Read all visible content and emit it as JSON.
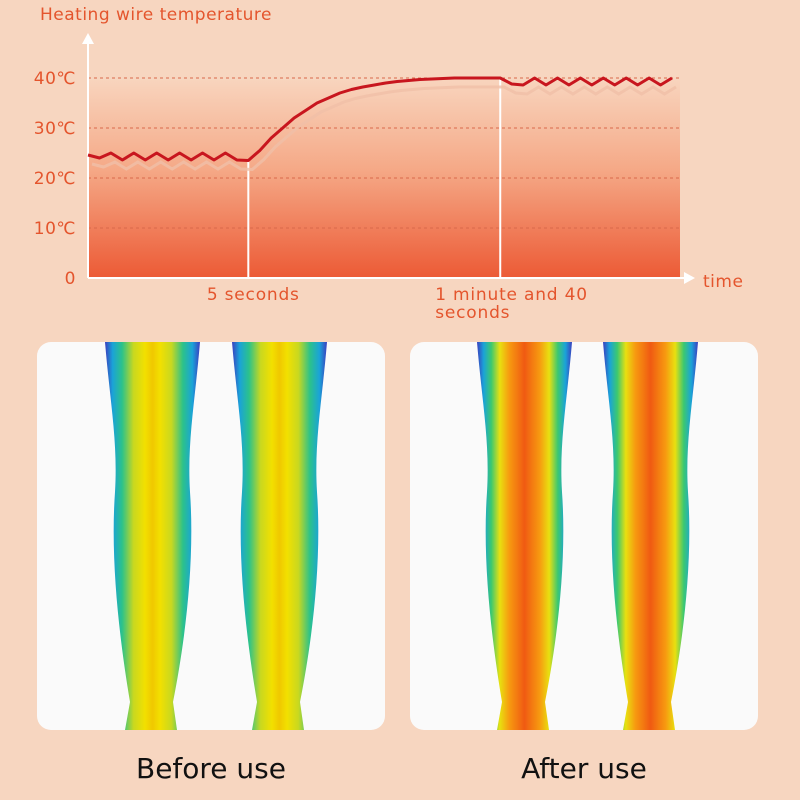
{
  "chart_data": {
    "type": "line",
    "title": "Heating wire temperature",
    "x_label": "time",
    "categories": [
      null,
      null,
      null,
      null,
      null,
      null,
      null,
      null,
      null,
      null,
      null,
      null,
      null,
      null,
      "5 seconds",
      null,
      null,
      null,
      null,
      null,
      null,
      null,
      null,
      null,
      null,
      null,
      null,
      null,
      null,
      null,
      null,
      null,
      null,
      null,
      null,
      null,
      "1 minute and 40 seconds",
      null,
      null,
      null,
      null,
      null,
      null,
      null,
      null,
      null,
      null,
      null,
      null,
      null,
      null,
      null
    ],
    "series": [
      {
        "name": "Heating wire temperature",
        "color": "#c8161e",
        "values": [
          24.6,
          24,
          25,
          23.6,
          25,
          23.6,
          25,
          23.6,
          25,
          23.6,
          25,
          23.6,
          25,
          23.6,
          23.5,
          25.5,
          28,
          30,
          32,
          33.5,
          35,
          36,
          37,
          37.7,
          38.2,
          38.6,
          39,
          39.3,
          39.5,
          39.7,
          39.8,
          39.9,
          40,
          40,
          40,
          40,
          40,
          38.8,
          38.6,
          40,
          38.6,
          40,
          38.6,
          40,
          38.6,
          40,
          38.6,
          40,
          38.6,
          40,
          38.6,
          40
        ]
      }
    ],
    "ylim": [
      0,
      49
    ],
    "yticks": [
      0,
      {
        "value": 10,
        "label": "10℃"
      },
      {
        "value": 20,
        "label": "20℃"
      },
      {
        "value": 30,
        "label": "30℃"
      },
      {
        "value": 40,
        "label": "40℃"
      }
    ],
    "grid": true
  },
  "panels": [
    {
      "caption": "Before use"
    },
    {
      "caption": "After use"
    }
  ]
}
